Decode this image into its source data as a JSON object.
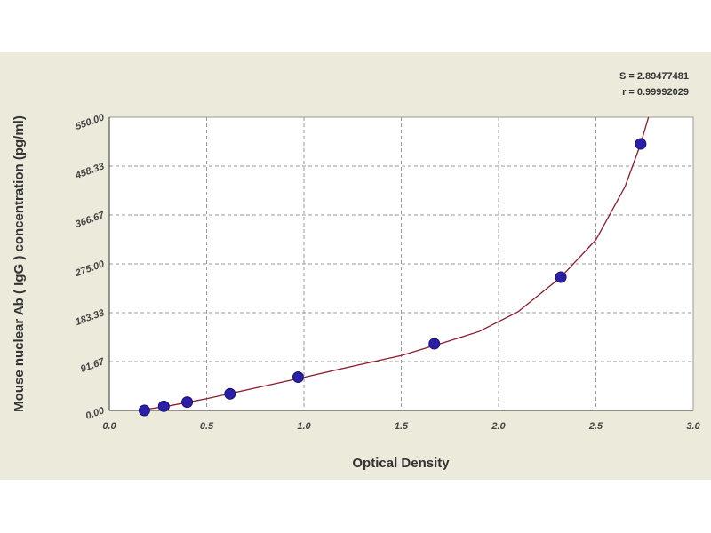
{
  "chart_data": {
    "type": "scatter",
    "x_label": "Optical Density",
    "y_label": "Mouse nuclear Ab ( IgG ) concentration (pg/ml)",
    "annotations": [
      "S = 2.89477481",
      "r = 0.99992029"
    ],
    "series": [
      {
        "x": [
          0.18,
          0.28,
          0.4,
          0.62,
          0.97,
          1.67,
          2.32,
          2.73
        ],
        "values": [
          0,
          7.81,
          15.63,
          31.25,
          62.5,
          125,
          250,
          500
        ],
        "color": "#2b1fa8"
      }
    ],
    "fit_curve": {
      "x": [
        0.15,
        0.3,
        0.5,
        0.75,
        1.0,
        1.25,
        1.5,
        1.7,
        1.9,
        2.1,
        2.32,
        2.5,
        2.65,
        2.73,
        2.77
      ],
      "values": [
        0,
        8,
        22,
        42,
        62,
        83,
        103,
        125,
        148,
        185,
        250,
        320,
        420,
        500,
        550
      ],
      "color": "#8b1a2a"
    },
    "xlim": [
      0,
      3
    ],
    "xticks": [
      {
        "value": 0,
        "label": "0.0"
      },
      0.5,
      {
        "value": 1,
        "label": "1.0"
      },
      1.5,
      {
        "value": 2,
        "label": "2.0"
      },
      2.5,
      {
        "value": 3,
        "label": "3.0"
      }
    ],
    "ylim": [
      0,
      550
    ],
    "yticks": [
      {
        "value": 0,
        "label": "0.00"
      },
      91.67,
      183.33,
      {
        "value": 275,
        "label": "275.00"
      },
      366.67,
      458.33,
      {
        "value": 550,
        "label": "550.00"
      }
    ],
    "grid": true
  }
}
